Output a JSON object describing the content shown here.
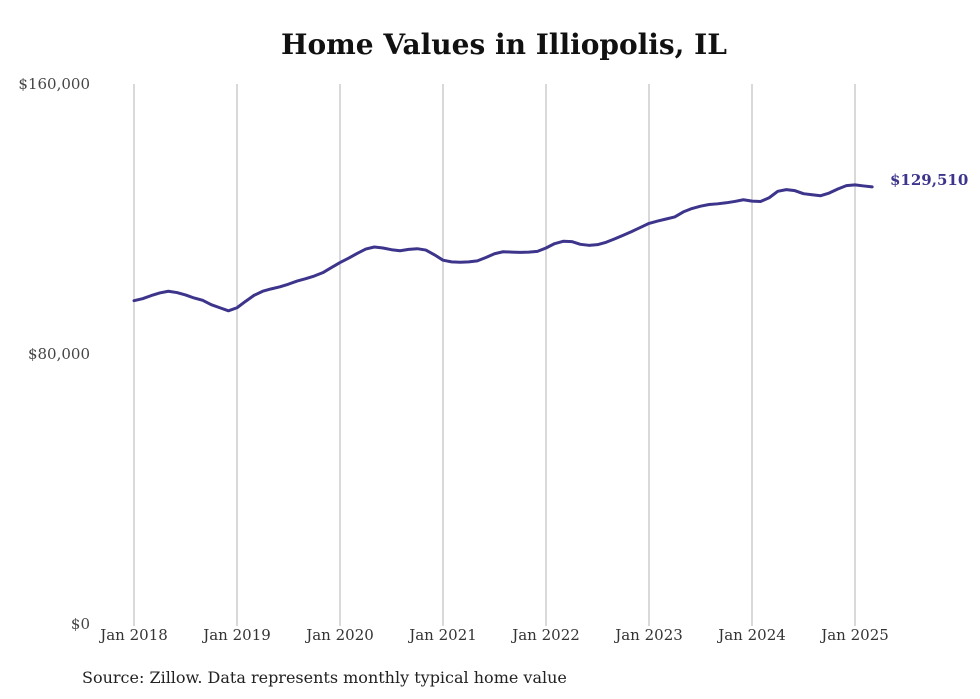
{
  "chart_data": {
    "type": "line",
    "title": "Home Values in Illiopolis, IL",
    "source": "Source: Zillow. Data represents monthly typical home value",
    "y_ticks": [
      "$0",
      "$80,000",
      "$160,000"
    ],
    "y_tick_values": [
      0,
      80000,
      160000
    ],
    "ylim": [
      0,
      160000
    ],
    "x_ticks": [
      "Jan 2018",
      "Jan 2019",
      "Jan 2020",
      "Jan 2021",
      "Jan 2022",
      "Jan 2023",
      "Jan 2024",
      "Jan 2025"
    ],
    "xlim": [
      "2018-01",
      "2025-03"
    ],
    "grid": "vertical",
    "series": [
      {
        "color": "#3d348b",
        "end_label": "$129,510",
        "points": [
          [
            "2018-01",
            95800
          ],
          [
            "2018-02",
            96400
          ],
          [
            "2018-03",
            97300
          ],
          [
            "2018-04",
            98100
          ],
          [
            "2018-05",
            98600
          ],
          [
            "2018-06",
            98200
          ],
          [
            "2018-07",
            97500
          ],
          [
            "2018-08",
            96600
          ],
          [
            "2018-09",
            95900
          ],
          [
            "2018-10",
            94600
          ],
          [
            "2018-11",
            93700
          ],
          [
            "2018-12",
            92800
          ],
          [
            "2019-01",
            93700
          ],
          [
            "2019-02",
            95600
          ],
          [
            "2019-03",
            97400
          ],
          [
            "2019-04",
            98600
          ],
          [
            "2019-05",
            99300
          ],
          [
            "2019-06",
            99900
          ],
          [
            "2019-07",
            100700
          ],
          [
            "2019-08",
            101600
          ],
          [
            "2019-09",
            102300
          ],
          [
            "2019-10",
            103100
          ],
          [
            "2019-11",
            104100
          ],
          [
            "2019-12",
            105600
          ],
          [
            "2020-01",
            107100
          ],
          [
            "2020-02",
            108400
          ],
          [
            "2020-03",
            109800
          ],
          [
            "2020-04",
            111100
          ],
          [
            "2020-05",
            111700
          ],
          [
            "2020-06",
            111400
          ],
          [
            "2020-07",
            110900
          ],
          [
            "2020-08",
            110600
          ],
          [
            "2020-09",
            111000
          ],
          [
            "2020-10",
            111200
          ],
          [
            "2020-11",
            110800
          ],
          [
            "2020-12",
            109400
          ],
          [
            "2021-01",
            107800
          ],
          [
            "2021-02",
            107300
          ],
          [
            "2021-03",
            107200
          ],
          [
            "2021-04",
            107300
          ],
          [
            "2021-05",
            107600
          ],
          [
            "2021-06",
            108600
          ],
          [
            "2021-07",
            109700
          ],
          [
            "2021-08",
            110300
          ],
          [
            "2021-09",
            110200
          ],
          [
            "2021-10",
            110100
          ],
          [
            "2021-11",
            110200
          ],
          [
            "2021-12",
            110400
          ],
          [
            "2022-01",
            111400
          ],
          [
            "2022-02",
            112700
          ],
          [
            "2022-03",
            113400
          ],
          [
            "2022-04",
            113300
          ],
          [
            "2022-05",
            112500
          ],
          [
            "2022-06",
            112200
          ],
          [
            "2022-07",
            112400
          ],
          [
            "2022-08",
            113100
          ],
          [
            "2022-09",
            114100
          ],
          [
            "2022-10",
            115200
          ],
          [
            "2022-11",
            116300
          ],
          [
            "2022-12",
            117500
          ],
          [
            "2023-01",
            118700
          ],
          [
            "2023-02",
            119400
          ],
          [
            "2023-03",
            120000
          ],
          [
            "2023-04",
            120600
          ],
          [
            "2023-05",
            122100
          ],
          [
            "2023-06",
            123100
          ],
          [
            "2023-07",
            123800
          ],
          [
            "2023-08",
            124300
          ],
          [
            "2023-09",
            124500
          ],
          [
            "2023-10",
            124800
          ],
          [
            "2023-11",
            125200
          ],
          [
            "2023-12",
            125700
          ],
          [
            "2024-01",
            125300
          ],
          [
            "2024-02",
            125200
          ],
          [
            "2024-03",
            126300
          ],
          [
            "2024-04",
            128200
          ],
          [
            "2024-05",
            128700
          ],
          [
            "2024-06",
            128400
          ],
          [
            "2024-07",
            127500
          ],
          [
            "2024-08",
            127200
          ],
          [
            "2024-09",
            126900
          ],
          [
            "2024-10",
            127700
          ],
          [
            "2024-11",
            128900
          ],
          [
            "2024-12",
            129900
          ],
          [
            "2025-01",
            130100
          ],
          [
            "2025-02",
            129800
          ],
          [
            "2025-03",
            129510
          ]
        ]
      }
    ]
  },
  "colors": {
    "line": "#3d348b",
    "grid": "#b3b3b3",
    "text": "#333333"
  }
}
